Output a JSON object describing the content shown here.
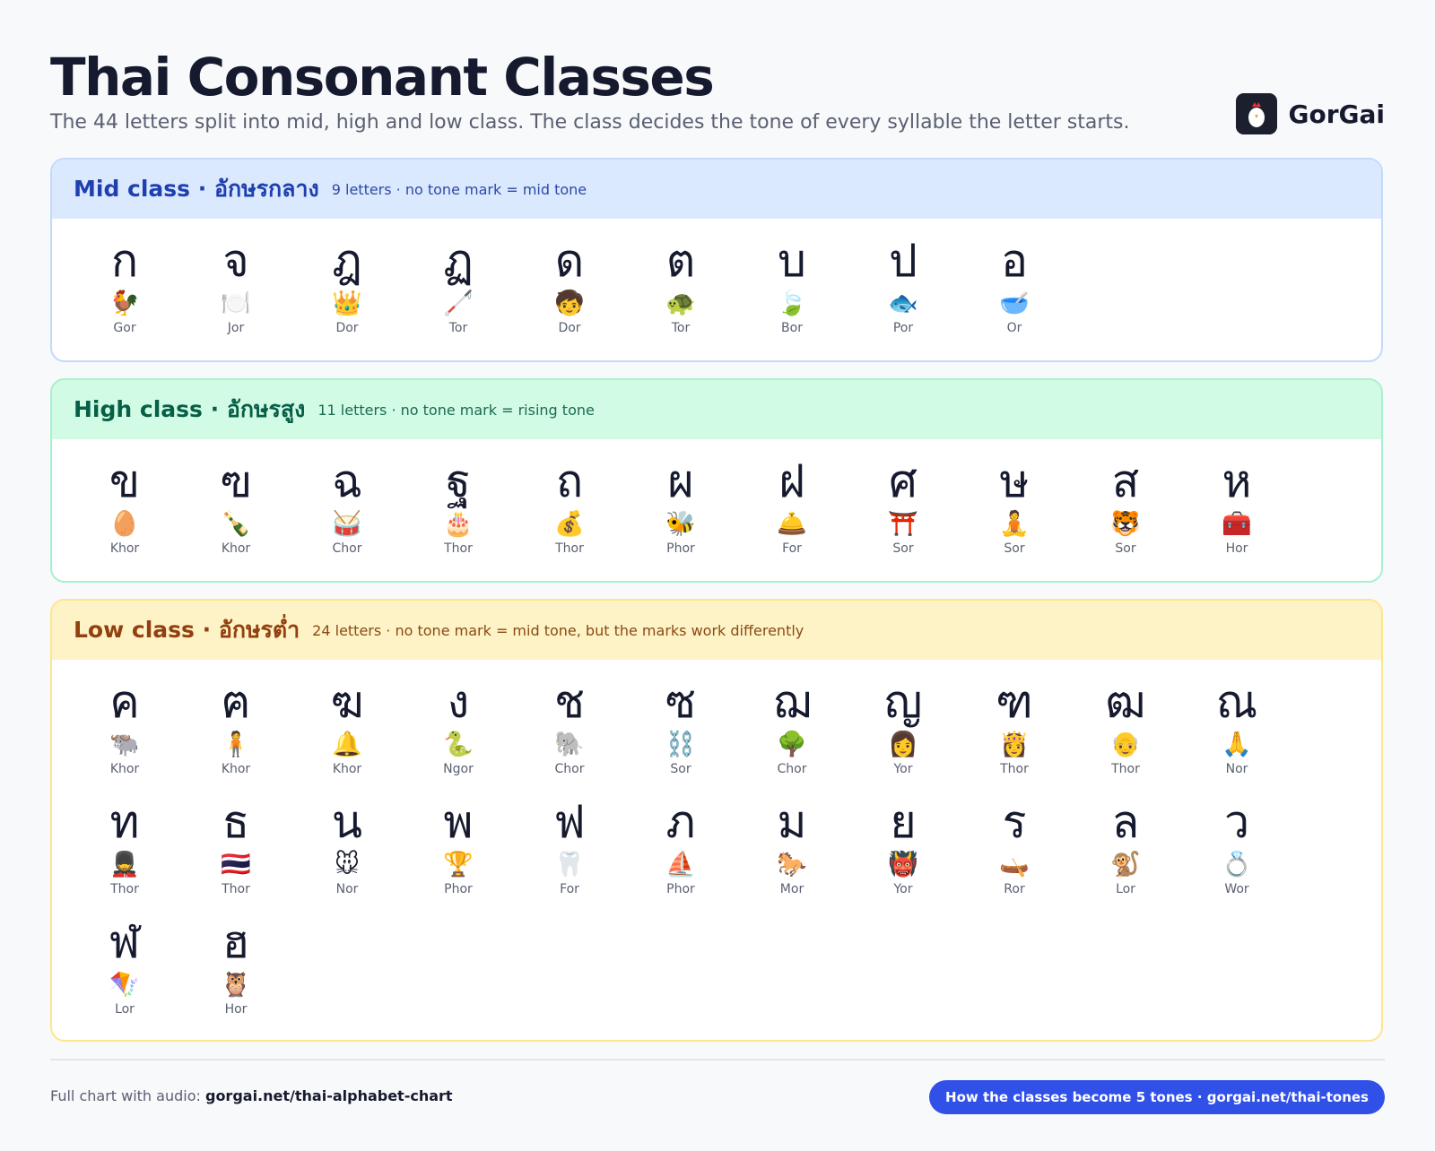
{
  "header": {
    "title": "Thai Consonant Classes",
    "subtitle": "The 44 letters split into mid, high and low class. The class decides the tone of every syllable the letter starts."
  },
  "brand": {
    "name": "GorGai"
  },
  "sections": [
    {
      "title": "Mid class · อักษรกลาง",
      "note": "9 letters · no tone mark = mid tone",
      "letters": [
        {
          "char": "ก",
          "icon": "🐓",
          "name": "Gor"
        },
        {
          "char": "จ",
          "icon": "🍽️",
          "name": "Jor"
        },
        {
          "char": "ฎ",
          "icon": "👑",
          "name": "Dor"
        },
        {
          "char": "ฏ",
          "icon": "🦯",
          "name": "Tor"
        },
        {
          "char": "ด",
          "icon": "🧒",
          "name": "Dor"
        },
        {
          "char": "ต",
          "icon": "🐢",
          "name": "Tor"
        },
        {
          "char": "บ",
          "icon": "🍃",
          "name": "Bor"
        },
        {
          "char": "ป",
          "icon": "🐟",
          "name": "Por"
        },
        {
          "char": "อ",
          "icon": "🥣",
          "name": "Or"
        }
      ]
    },
    {
      "title": "High class · อักษรสูง",
      "note": "11 letters · no tone mark = rising tone",
      "letters": [
        {
          "char": "ข",
          "icon": "🥚",
          "name": "Khor"
        },
        {
          "char": "ฃ",
          "icon": "🍾",
          "name": "Khor"
        },
        {
          "char": "ฉ",
          "icon": "🥁",
          "name": "Chor"
        },
        {
          "char": "ฐ",
          "icon": "🎂",
          "name": "Thor"
        },
        {
          "char": "ถ",
          "icon": "💰",
          "name": "Thor"
        },
        {
          "char": "ผ",
          "icon": "🐝",
          "name": "Phor"
        },
        {
          "char": "ฝ",
          "icon": "🛎️",
          "name": "For"
        },
        {
          "char": "ศ",
          "icon": "⛩️",
          "name": "Sor"
        },
        {
          "char": "ษ",
          "icon": "🧘",
          "name": "Sor"
        },
        {
          "char": "ส",
          "icon": "🐯",
          "name": "Sor"
        },
        {
          "char": "ห",
          "icon": "🧰",
          "name": "Hor"
        }
      ]
    },
    {
      "title": "Low class · อักษรต่ำ",
      "note": "24 letters · no tone mark = mid tone, but the marks work differently",
      "letters": [
        {
          "char": "ค",
          "icon": "🐃",
          "name": "Khor"
        },
        {
          "char": "ฅ",
          "icon": "🧍",
          "name": "Khor"
        },
        {
          "char": "ฆ",
          "icon": "🔔",
          "name": "Khor"
        },
        {
          "char": "ง",
          "icon": "🐍",
          "name": "Ngor"
        },
        {
          "char": "ช",
          "icon": "🐘",
          "name": "Chor"
        },
        {
          "char": "ซ",
          "icon": "⛓️",
          "name": "Sor"
        },
        {
          "char": "ฌ",
          "icon": "🌳",
          "name": "Chor"
        },
        {
          "char": "ญ",
          "icon": "👩",
          "name": "Yor"
        },
        {
          "char": "ฑ",
          "icon": "👸",
          "name": "Thor"
        },
        {
          "char": "ฒ",
          "icon": "👴",
          "name": "Thor"
        },
        {
          "char": "ณ",
          "icon": "🙏",
          "name": "Nor"
        },
        {
          "char": "ท",
          "icon": "💂",
          "name": "Thor"
        },
        {
          "char": "ธ",
          "icon": "🇹🇭",
          "name": "Thor"
        },
        {
          "char": "น",
          "icon": "🐭",
          "name": "Nor"
        },
        {
          "char": "พ",
          "icon": "🏆",
          "name": "Phor"
        },
        {
          "char": "ฟ",
          "icon": "🦷",
          "name": "For"
        },
        {
          "char": "ภ",
          "icon": "⛵",
          "name": "Phor"
        },
        {
          "char": "ม",
          "icon": "🐎",
          "name": "Mor"
        },
        {
          "char": "ย",
          "icon": "👹",
          "name": "Yor"
        },
        {
          "char": "ร",
          "icon": "🛶",
          "name": "Ror"
        },
        {
          "char": "ล",
          "icon": "🐒",
          "name": "Lor"
        },
        {
          "char": "ว",
          "icon": "💍",
          "name": "Wor"
        },
        {
          "char": "ฬ",
          "icon": "🪁",
          "name": "Lor"
        },
        {
          "char": "ฮ",
          "icon": "🦉",
          "name": "Hor"
        }
      ]
    }
  ],
  "footer": {
    "label": "Full chart with audio:",
    "link": "gorgai.net/thai-alphabet-chart",
    "button": "How the classes become 5 tones · gorgai.net/thai-tones"
  }
}
